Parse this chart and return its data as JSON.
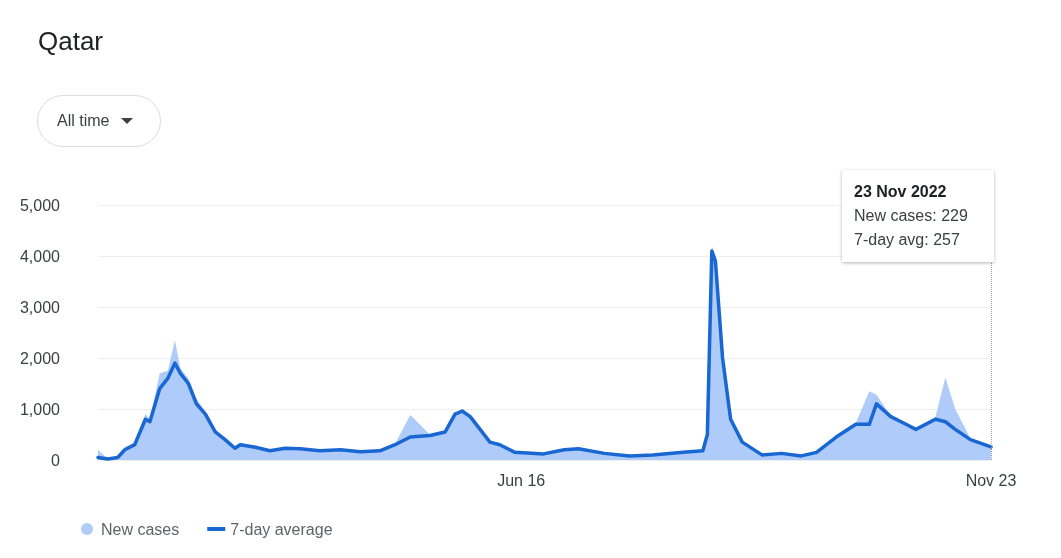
{
  "chart_data": {
    "type": "line",
    "title": "Qatar",
    "x": [
      "2020-02-29",
      "2020-03-11",
      "2020-03-22",
      "2020-03-30",
      "2020-04-10",
      "2020-04-22",
      "2020-04-27",
      "2020-05-08",
      "2020-05-17",
      "2020-05-25",
      "2020-05-31",
      "2020-06-09",
      "2020-06-18",
      "2020-06-28",
      "2020-07-09",
      "2020-07-20",
      "2020-07-31",
      "2020-08-06",
      "2020-08-23",
      "2020-09-08",
      "2020-09-25",
      "2020-10-12",
      "2020-11-03",
      "2020-11-26",
      "2020-12-18",
      "2021-01-09",
      "2021-01-26",
      "2021-02-12",
      "2021-03-06",
      "2021-03-23",
      "2021-04-03",
      "2021-04-11",
      "2021-04-20",
      "2021-05-01",
      "2021-05-12",
      "2021-05-23",
      "2021-06-09",
      "2021-07-11",
      "2021-08-03",
      "2021-08-19",
      "2021-09-17",
      "2021-10-15",
      "2021-11-10",
      "2021-12-14",
      "2022-01-05",
      "2022-01-10",
      "2022-01-15",
      "2022-01-19",
      "2022-01-27",
      "2022-02-05",
      "2022-02-18",
      "2022-03-12",
      "2022-04-03",
      "2022-04-25",
      "2022-05-12",
      "2022-06-03",
      "2022-06-25",
      "2022-07-10",
      "2022-07-18",
      "2022-08-03",
      "2022-08-20",
      "2022-08-31",
      "2022-09-22",
      "2022-10-03",
      "2022-10-14",
      "2022-10-31",
      "2022-11-23"
    ],
    "series": [
      {
        "name": "New cases",
        "type": "area",
        "color": "#aecbfa",
        "values": [
          200,
          20,
          60,
          250,
          350,
          900,
          800,
          1700,
          1750,
          2350,
          1800,
          1600,
          1200,
          950,
          600,
          420,
          250,
          320,
          260,
          190,
          240,
          230,
          190,
          210,
          170,
          190,
          320,
          880,
          500,
          560,
          920,
          980,
          870,
          620,
          380,
          320,
          160,
          130,
          210,
          230,
          140,
          90,
          110,
          160,
          190,
          600,
          4200,
          3900,
          2100,
          850,
          360,
          110,
          150,
          90,
          160,
          480,
          730,
          1350,
          1280,
          870,
          720,
          620,
          850,
          1620,
          1000,
          420,
          229
        ]
      },
      {
        "name": "7-day average",
        "type": "line",
        "color": "#1967d2",
        "values": [
          50,
          20,
          50,
          200,
          300,
          800,
          750,
          1400,
          1600,
          1900,
          1700,
          1500,
          1100,
          900,
          550,
          400,
          230,
          300,
          250,
          180,
          230,
          220,
          180,
          200,
          160,
          180,
          300,
          450,
          480,
          550,
          900,
          960,
          850,
          600,
          350,
          300,
          150,
          120,
          200,
          220,
          130,
          80,
          100,
          150,
          180,
          500,
          4100,
          3900,
          2000,
          800,
          350,
          100,
          130,
          80,
          150,
          450,
          700,
          700,
          1100,
          850,
          700,
          600,
          800,
          750,
          600,
          400,
          257
        ]
      }
    ],
    "ylim": [
      0,
      5000
    ],
    "yticks": [
      {
        "value": 0,
        "label": "0"
      },
      {
        "value": 1000,
        "label": "1,000"
      },
      {
        "value": 2000,
        "label": "2,000"
      },
      {
        "value": 3000,
        "label": "3,000"
      },
      {
        "value": 4000,
        "label": "4,000"
      },
      {
        "value": 5000,
        "label": "5,000"
      }
    ],
    "xlim": [
      "2020-02-29",
      "2022-11-23"
    ],
    "xticks": [
      {
        "value": "2021-06-16",
        "label": "Jun 16"
      },
      {
        "value": "2022-11-23",
        "label": "Nov 23"
      }
    ],
    "ref_lines": [
      {
        "axis": "x",
        "value": "2022-11-23",
        "label": null,
        "line_style": "dotted",
        "color": "#9e9e9e"
      }
    ],
    "annotations": [
      "All time",
      "23 Nov 2022",
      "New cases: 229",
      "7-day avg: 257"
    ],
    "grid": "y",
    "legend": "bottom left",
    "marker": "none",
    "line_style": "solid"
  }
}
